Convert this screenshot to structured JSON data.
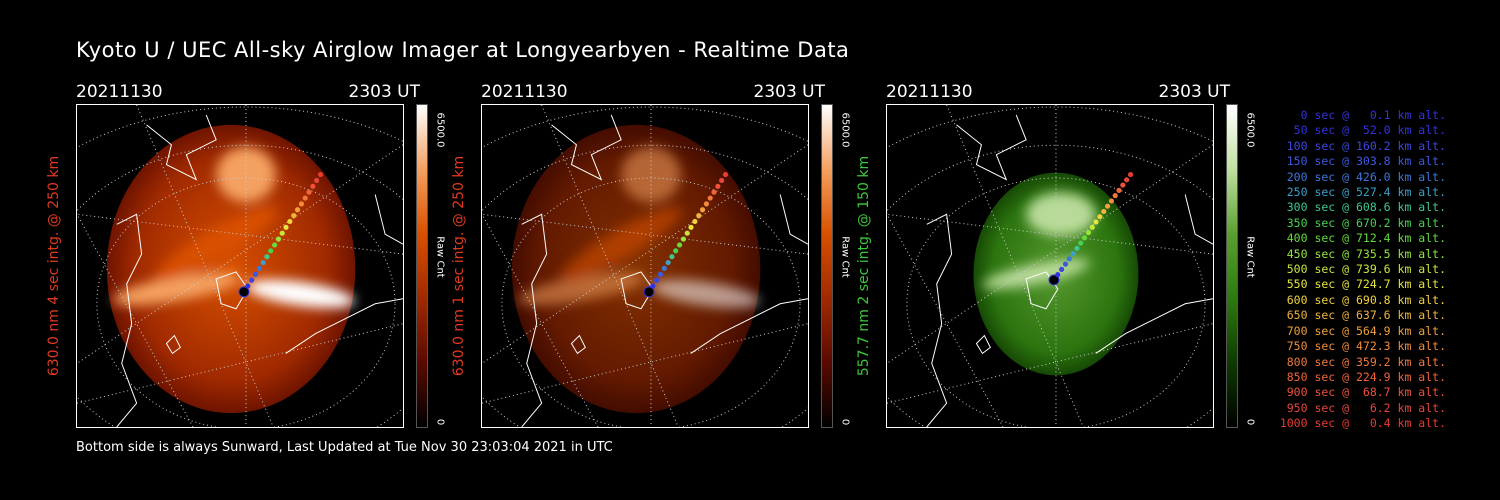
{
  "page": {
    "title": "Kyoto U / UEC All-sky Airglow Imager at Longyearbyen - Realtime Data",
    "footer": "Bottom side is always Sunward, Last Updated at Tue Nov 30 23:03:04 2021 in UTC"
  },
  "panels": [
    {
      "date": "20211130",
      "time": "2303 UT",
      "side_label": "630.0 nm 4 sec intg. @ 250 km",
      "label_color": "#e03a1e",
      "colorbar_max": "6500.0",
      "colorbar_min": "0",
      "colorbar_unit": "Raw Cnt",
      "colormap": [
        "#000000",
        "#5a0a00",
        "#a02a00",
        "#d85000",
        "#f4a060",
        "#ffffff"
      ],
      "level": 0.55
    },
    {
      "date": "20211130",
      "time": "2303 UT",
      "side_label": "630.0 nm 1 sec intg. @ 250 km",
      "label_color": "#e03a1e",
      "colorbar_max": "6500.0",
      "colorbar_min": "0",
      "colorbar_unit": "Raw Cnt",
      "colormap": [
        "#000000",
        "#5a0a00",
        "#a02a00",
        "#d85000",
        "#f4a060",
        "#ffffff"
      ],
      "level": 0.22
    },
    {
      "date": "20211130",
      "time": "2303 UT",
      "side_label": "557.7 nm 2 sec intg. @ 150 km",
      "label_color": "#3cc83c",
      "colorbar_max": "6500.0",
      "colorbar_min": "0",
      "colorbar_unit": "Raw Cnt",
      "colormap": [
        "#000000",
        "#0e3a00",
        "#2e7a10",
        "#5aa030",
        "#c0e0a0",
        "#ffffff"
      ],
      "level": 0.5
    }
  ],
  "legend": [
    {
      "text": "0 sec @   0.1 km alt.",
      "color": "#3232d8"
    },
    {
      "text": "50 sec @  52.0 km alt.",
      "color": "#3232e0"
    },
    {
      "text": "100 sec @ 160.2 km alt.",
      "color": "#3c46e0"
    },
    {
      "text": "150 sec @ 303.8 km alt.",
      "color": "#3c5ae0"
    },
    {
      "text": "200 sec @ 426.0 km alt.",
      "color": "#3c78dc"
    },
    {
      "text": "250 sec @ 527.4 km alt.",
      "color": "#3ca0c8"
    },
    {
      "text": "300 sec @ 608.6 km alt.",
      "color": "#3cc890"
    },
    {
      "text": "350 sec @ 670.2 km alt.",
      "color": "#46d250"
    },
    {
      "text": "400 sec @ 712.4 km alt.",
      "color": "#64dc3c"
    },
    {
      "text": "450 sec @ 735.5 km alt.",
      "color": "#96e63c"
    },
    {
      "text": "500 sec @ 739.6 km alt.",
      "color": "#c8e63c"
    },
    {
      "text": "550 sec @ 724.7 km alt.",
      "color": "#e6e63c"
    },
    {
      "text": "600 sec @ 690.8 km alt.",
      "color": "#f0d23c"
    },
    {
      "text": "650 sec @ 637.6 km alt.",
      "color": "#f0b43c"
    },
    {
      "text": "700 sec @ 564.9 km alt.",
      "color": "#f0a03c"
    },
    {
      "text": "750 sec @ 472.3 km alt.",
      "color": "#f08c3c"
    },
    {
      "text": "800 sec @ 359.2 km alt.",
      "color": "#f0783c"
    },
    {
      "text": "850 sec @ 224.9 km alt.",
      "color": "#f0643c"
    },
    {
      "text": "900 sec @  68.7 km alt.",
      "color": "#f0503c"
    },
    {
      "text": "950 sec @   6.2 km alt.",
      "color": "#e6463c"
    },
    {
      "text": "1000 sec @   0.4 km alt.",
      "color": "#e63c32"
    }
  ]
}
